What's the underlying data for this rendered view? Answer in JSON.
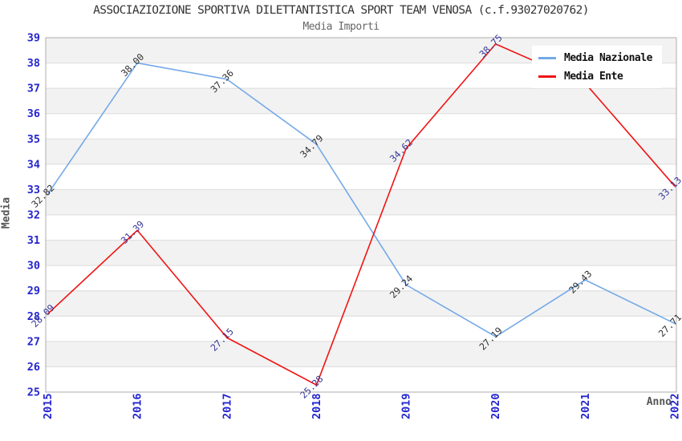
{
  "page": {
    "title": "ASSOCIAZIOZIONE SPORTIVA DILETTANTISTICA SPORT TEAM VENOSA (c.f.93027020762)",
    "subtitle": "Media Importi"
  },
  "colors": {
    "tick_label_blue": "#2525CE",
    "axis_title_gray": "#555555",
    "band_gray": "#F2F2F2",
    "band_white": "#FFFFFF",
    "gridline": "#DCDCDC",
    "plot_border": "#AEAEAE",
    "series_nazionale_line": "#74A9E8",
    "series_ente_line": "#F01414",
    "label_nazionale": "#303030",
    "label_ente": "#373797"
  },
  "chart_data": {
    "type": "line",
    "title": "ASSOCIAZIOZIONE SPORTIVA DILETTANTISTICA SPORT TEAM VENOSA (c.f.93027020762)",
    "subtitle": "Media Importi",
    "xlabel": "Anno",
    "ylabel": "Media",
    "categories": [
      "2015",
      "2016",
      "2017",
      "2018",
      "2019",
      "2020",
      "2021",
      "2022"
    ],
    "ylim": [
      25,
      39
    ],
    "ytick_step": 1,
    "grid": "horizontal-bands-alternating",
    "legend_position": "top-right-inside",
    "series": [
      {
        "name": "Media Nazionale",
        "color": "#74A9E8",
        "label_color": "#303030",
        "values": [
          32.82,
          38.0,
          37.36,
          34.79,
          29.24,
          27.19,
          29.43,
          27.71
        ],
        "labels": [
          "32.82",
          "38.00",
          "37.36",
          "34.79",
          "29.24",
          "27.19",
          "29.43",
          "27.71"
        ]
      },
      {
        "name": "Media Ente",
        "color": "#F01414",
        "label_color": "#373797",
        "values": [
          28.09,
          31.39,
          27.15,
          25.28,
          34.62,
          38.75,
          37.2,
          33.13
        ],
        "labels": [
          "28.09",
          "31.39",
          "27.15",
          "25.28",
          "34.62",
          "38.75",
          "",
          "33.13"
        ]
      }
    ]
  }
}
